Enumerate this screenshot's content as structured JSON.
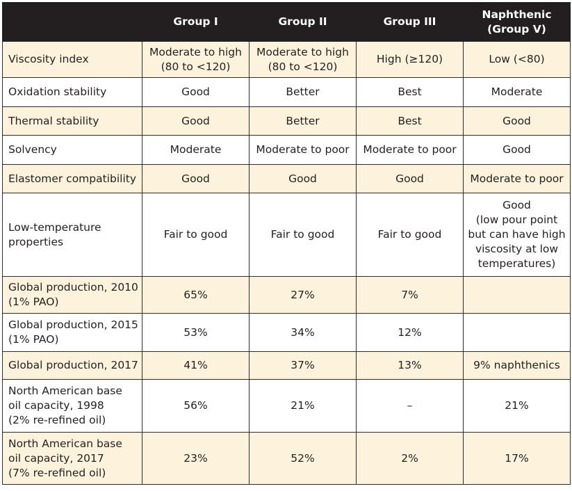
{
  "columns": [
    "",
    "Group I",
    "Group II",
    "Group III",
    "Naphthenic\n(Group V)"
  ],
  "rows": [
    {
      "label": "Viscosity index",
      "values": [
        "Moderate to high\n(80 to <120)",
        "Moderate to high\n(80 to <120)",
        "High (≥120)",
        "Low (<80)"
      ]
    },
    {
      "label": "Oxidation stability",
      "values": [
        "Good",
        "Better",
        "Best",
        "Moderate"
      ]
    },
    {
      "label": "Thermal stability",
      "values": [
        "Good",
        "Better",
        "Best",
        "Good"
      ]
    },
    {
      "label": "Solvency",
      "values": [
        "Moderate",
        "Moderate to poor",
        "Moderate to poor",
        "Good"
      ]
    },
    {
      "label": "Elastomer compatibility",
      "values": [
        "Good",
        "Good",
        "Good",
        "Moderate to poor"
      ]
    },
    {
      "label": "Low-temperature\nproperties",
      "values": [
        "Fair to good",
        "Fair to good",
        "Fair to good",
        "Good\n(low pour point\nbut can have high\nviscosity at low\ntemperatures)"
      ]
    },
    {
      "label": "Global production, 2010\n(1% PAO)",
      "values": [
        "65%",
        "27%",
        "7%",
        ""
      ]
    },
    {
      "label": "Global production, 2015\n(1% PAO)",
      "values": [
        "53%",
        "34%",
        "12%",
        ""
      ]
    },
    {
      "label": "Global production, 2017",
      "values": [
        "41%",
        "37%",
        "13%",
        "9% naphthenics"
      ]
    },
    {
      "label": "North American base\noil capacity, 1998\n(2% re-refined oil)",
      "values": [
        "56%",
        "21%",
        "–",
        "21%"
      ]
    },
    {
      "label": "North American base\noil capacity, 2017\n(7% re-refined oil)",
      "values": [
        "23%",
        "52%",
        "2%",
        "17%"
      ]
    }
  ],
  "colors": {
    "header_bg": "#231f20",
    "header_text": "#ffffff",
    "shade_row": "#fdf3dd",
    "border": "#2b2b2b"
  }
}
